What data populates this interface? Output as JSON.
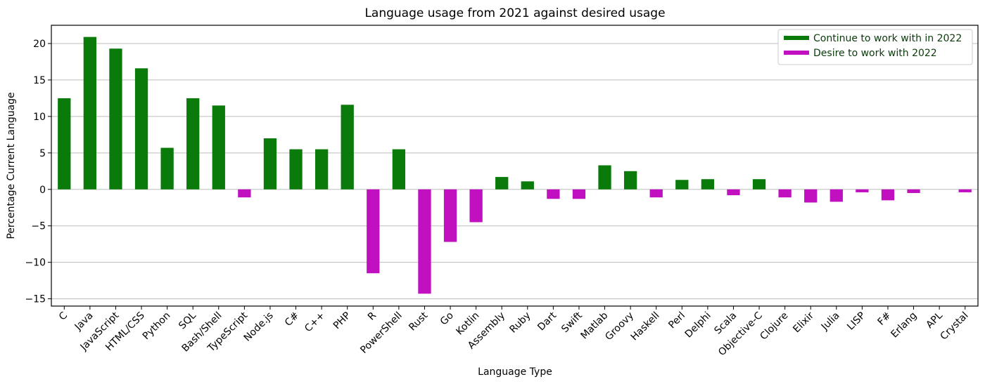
{
  "chart_data": {
    "type": "bar",
    "title": "Language usage from 2021 against desired usage",
    "xlabel": "Language Type",
    "ylabel": "Percentage Current Language",
    "ylim": [
      -16,
      22.5
    ],
    "yticks": [
      -15,
      -10,
      -5,
      0,
      5,
      10,
      15,
      20
    ],
    "grid": "horizontal",
    "legend_position": "top-right",
    "colors": {
      "positive": "#0a7a0a",
      "negative": "#c010c0"
    },
    "legend": [
      {
        "label": "Continue to work with in 2022",
        "color": "#0a7a0a"
      },
      {
        "label": "Desire to work with 2022",
        "color": "#c010c0"
      }
    ],
    "categories": [
      "C",
      "Java",
      "JavaScript",
      "HTML/CSS",
      "Python",
      "SQL",
      "Bash/Shell",
      "TypeScript",
      "Node.js",
      "C#",
      "C++",
      "PHP",
      "R",
      "PowerShell",
      "Rust",
      "Go",
      "Kotlin",
      "Assembly",
      "Ruby",
      "Dart",
      "Swift",
      "Matlab",
      "Groovy",
      "Haskell",
      "Perl",
      "Delphi",
      "Scala",
      "Objective-C",
      "Clojure",
      "Elixir",
      "Julia",
      "LISP",
      "F#",
      "Erlang",
      "APL",
      "Crystal"
    ],
    "values": [
      12.5,
      20.9,
      19.3,
      16.6,
      5.7,
      12.5,
      11.5,
      -1.1,
      7.0,
      5.5,
      5.5,
      11.6,
      -11.5,
      5.5,
      -14.3,
      -7.2,
      -4.5,
      1.7,
      1.1,
      -1.3,
      -1.3,
      3.3,
      2.5,
      -1.1,
      1.3,
      1.4,
      -0.8,
      1.4,
      -1.1,
      -1.8,
      -1.7,
      -0.4,
      -1.5,
      -0.5,
      0.0,
      -0.4
    ]
  }
}
